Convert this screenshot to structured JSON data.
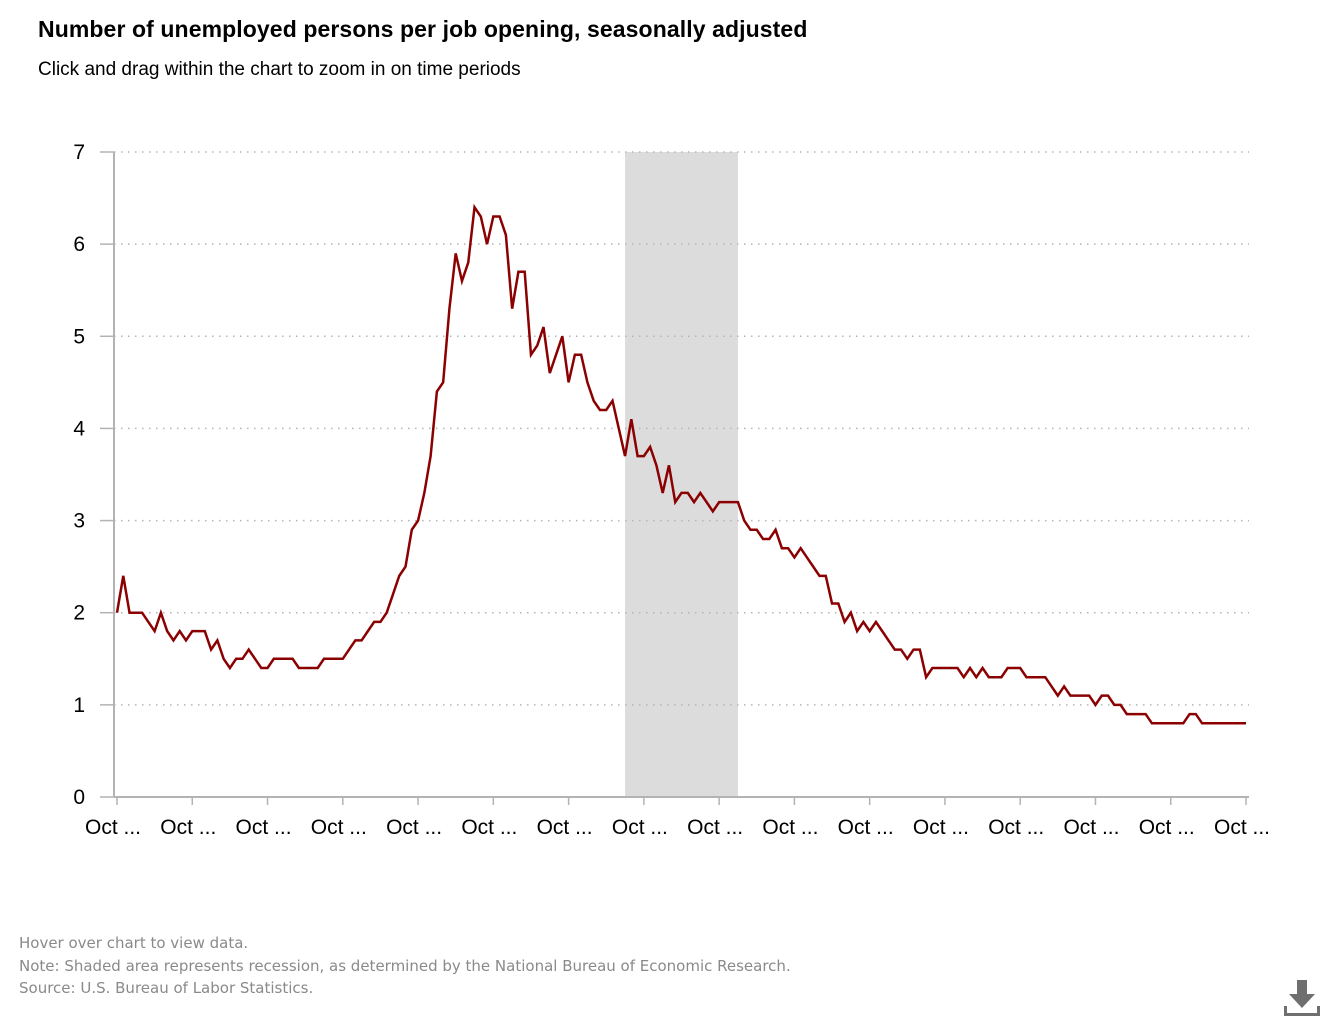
{
  "header": {
    "title": "Number of unemployed persons per job opening, seasonally adjusted",
    "subtitle": "Click and drag within the chart to zoom in on time periods"
  },
  "footer": {
    "hover_note": "Hover over chart to view data.",
    "recession_note": "Note: Shaded area represents recession, as determined by the National Bureau of Economic Research.",
    "source": "Source: U.S. Bureau of Labor Statistics."
  },
  "icons": {
    "download": "download-icon"
  },
  "colors": {
    "line": "#8b0000",
    "recession": "#dcdcdc",
    "grid": "#b5b5b5",
    "axis": "#b3b3b3"
  },
  "chart_data": {
    "type": "line",
    "title": "Number of unemployed persons per job opening, seasonally adjusted",
    "subtitle": "Click and drag within the chart to zoom in on time periods",
    "xlabel": "",
    "ylabel": "",
    "ylim": [
      0,
      7
    ],
    "yticks": [
      0,
      1,
      2,
      3,
      4,
      5,
      6,
      7
    ],
    "xtick_labels": [
      "Oct ...",
      "Oct ...",
      "Oct ...",
      "Oct ...",
      "Oct ...",
      "Oct ...",
      "Oct ...",
      "Oct ...",
      "Oct ...",
      "Oct ...",
      "Oct ...",
      "Oct ...",
      "Oct ...",
      "Oct ...",
      "Oct ...",
      "Oct ..."
    ],
    "grid": "horizontal dotted",
    "legend": "none",
    "recession": {
      "start_month_index": 81,
      "end_month_index": 99
    },
    "series": [
      {
        "values": [
          2.0,
          2.4,
          2.0,
          2.0,
          2.0,
          1.9,
          1.8,
          2.0,
          1.8,
          1.7,
          1.8,
          1.7,
          1.8,
          1.8,
          1.8,
          1.6,
          1.7,
          1.5,
          1.4,
          1.5,
          1.5,
          1.6,
          1.5,
          1.4,
          1.4,
          1.5,
          1.5,
          1.5,
          1.5,
          1.4,
          1.4,
          1.4,
          1.4,
          1.5,
          1.5,
          1.5,
          1.5,
          1.6,
          1.7,
          1.7,
          1.8,
          1.9,
          1.9,
          2.0,
          2.2,
          2.4,
          2.5,
          2.9,
          3.0,
          3.3,
          3.7,
          4.4,
          4.5,
          5.3,
          5.9,
          5.6,
          5.8,
          6.4,
          6.3,
          6.0,
          6.3,
          6.3,
          6.1,
          5.3,
          5.7,
          5.7,
          4.8,
          4.9,
          5.1,
          4.6,
          4.8,
          5.0,
          4.5,
          4.8,
          4.8,
          4.5,
          4.3,
          4.2,
          4.2,
          4.3,
          4.0,
          3.7,
          4.1,
          3.7,
          3.7,
          3.8,
          3.6,
          3.3,
          3.6,
          3.2,
          3.3,
          3.3,
          3.2,
          3.3,
          3.2,
          3.1,
          3.2,
          3.2,
          3.2,
          3.2,
          3.0,
          2.9,
          2.9,
          2.8,
          2.8,
          2.9,
          2.7,
          2.7,
          2.6,
          2.7,
          2.6,
          2.5,
          2.4,
          2.4,
          2.1,
          2.1,
          1.9,
          2.0,
          1.8,
          1.9,
          1.8,
          1.9,
          1.8,
          1.7,
          1.6,
          1.6,
          1.5,
          1.6,
          1.6,
          1.3,
          1.4,
          1.4,
          1.4,
          1.4,
          1.4,
          1.3,
          1.4,
          1.3,
          1.4,
          1.3,
          1.3,
          1.3,
          1.4,
          1.4,
          1.4,
          1.3,
          1.3,
          1.3,
          1.3,
          1.2,
          1.1,
          1.2,
          1.1,
          1.1,
          1.1,
          1.1,
          1.0,
          1.1,
          1.1,
          1.0,
          1.0,
          0.9,
          0.9,
          0.9,
          0.9,
          0.8,
          0.8,
          0.8,
          0.8,
          0.8,
          0.8,
          0.9,
          0.9,
          0.8,
          0.8,
          0.8,
          0.8,
          0.8,
          0.8,
          0.8,
          0.8
        ]
      }
    ]
  }
}
